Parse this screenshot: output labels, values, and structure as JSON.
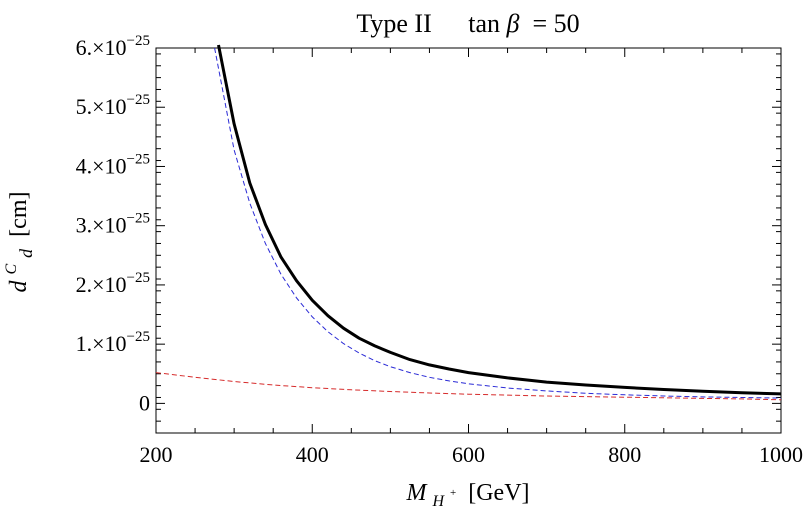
{
  "chart_data": {
    "type": "line",
    "title": {
      "prefix": "Type II",
      "param": "tan",
      "param_symbol": "β",
      "relation": " = 50"
    },
    "xlabel": {
      "symbol": "M",
      "sub": "H",
      "sup": "+",
      "unit": "[GeV]"
    },
    "ylabel": {
      "symbol": "d",
      "sup": "C",
      "sub": "d",
      "unit": "[cm]"
    },
    "xlim": [
      200,
      1000
    ],
    "ylim": [
      -0.5,
      6.0
    ],
    "y_scale_note": "values in units of 10^-25 cm",
    "x_ticks": [
      200,
      400,
      600,
      800,
      1000
    ],
    "x_tick_labels": [
      "200",
      "400",
      "600",
      "800",
      "1000"
    ],
    "y_ticks": [
      0,
      1,
      2,
      3,
      4,
      5,
      6
    ],
    "y_tick_labels": [
      {
        "mantissa": "0",
        "exponent": ""
      },
      {
        "mantissa": "1.×10",
        "exponent": "−25"
      },
      {
        "mantissa": "2.×10",
        "exponent": "−25"
      },
      {
        "mantissa": "3.×10",
        "exponent": "−25"
      },
      {
        "mantissa": "4.×10",
        "exponent": "−25"
      },
      {
        "mantissa": "5.×10",
        "exponent": "−25"
      },
      {
        "mantissa": "6.×10",
        "exponent": "−25"
      }
    ],
    "grid": false,
    "legend": "none",
    "series": [
      {
        "style": "solid",
        "color": "#000000",
        "x": [
          280,
          300,
          320,
          340,
          360,
          380,
          400,
          420,
          440,
          460,
          480,
          500,
          525,
          550,
          575,
          600,
          650,
          700,
          750,
          800,
          850,
          900,
          950,
          1000
        ],
        "values": [
          6.05,
          4.72,
          3.72,
          3.02,
          2.47,
          2.07,
          1.74,
          1.48,
          1.27,
          1.1,
          0.97,
          0.86,
          0.74,
          0.65,
          0.58,
          0.52,
          0.43,
          0.36,
          0.31,
          0.27,
          0.235,
          0.205,
          0.18,
          0.16
        ]
      },
      {
        "style": "dashed",
        "color": "#2b2bd6",
        "x": [
          275,
          300,
          320,
          340,
          360,
          380,
          400,
          420,
          440,
          460,
          480,
          500,
          525,
          550,
          575,
          600,
          650,
          700,
          750,
          800,
          850,
          900,
          950,
          1000
        ],
        "values": [
          6.0,
          4.28,
          3.38,
          2.7,
          2.18,
          1.78,
          1.46,
          1.21,
          1.01,
          0.85,
          0.72,
          0.62,
          0.52,
          0.44,
          0.38,
          0.33,
          0.26,
          0.21,
          0.17,
          0.145,
          0.125,
          0.11,
          0.1,
          0.09
        ]
      },
      {
        "style": "dashed",
        "color": "#d62b2b",
        "x": [
          200,
          250,
          300,
          350,
          400,
          450,
          500,
          550,
          600,
          650,
          700,
          750,
          800,
          850,
          900,
          950,
          1000
        ],
        "values": [
          0.52,
          0.44,
          0.37,
          0.31,
          0.265,
          0.23,
          0.2,
          0.175,
          0.155,
          0.14,
          0.125,
          0.115,
          0.105,
          0.095,
          0.085,
          0.075,
          0.06
        ]
      }
    ]
  }
}
